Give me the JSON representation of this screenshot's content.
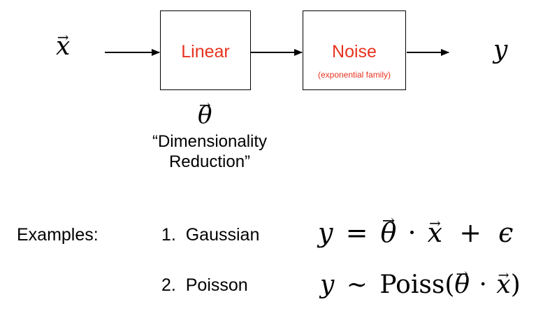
{
  "diagram": {
    "input_symbol": "x",
    "output_symbol": "y",
    "linear_box": {
      "label": "Linear"
    },
    "noise_box": {
      "label": "Noise",
      "sublabel": "(exponential family)"
    },
    "parameter_symbol": "θ",
    "vector_accent": "→",
    "parameter_caption_line1": "“Dimensionality",
    "parameter_caption_line2": "Reduction”",
    "accent_color": "#e8321e"
  },
  "examples": {
    "heading": "Examples:",
    "items": [
      {
        "label": "1.  Gaussian",
        "formula": {
          "lhs": "y",
          "rel": "=",
          "theta": "θ",
          "dot": "·",
          "x": "x",
          "plus": "+",
          "eps": "ϵ"
        }
      },
      {
        "label": "2.  Poisson",
        "formula": {
          "lhs": "y",
          "rel": "∼",
          "fn": "Poiss(",
          "theta": "θ",
          "dot": "·",
          "x": "x",
          "close": ")"
        }
      }
    ]
  }
}
